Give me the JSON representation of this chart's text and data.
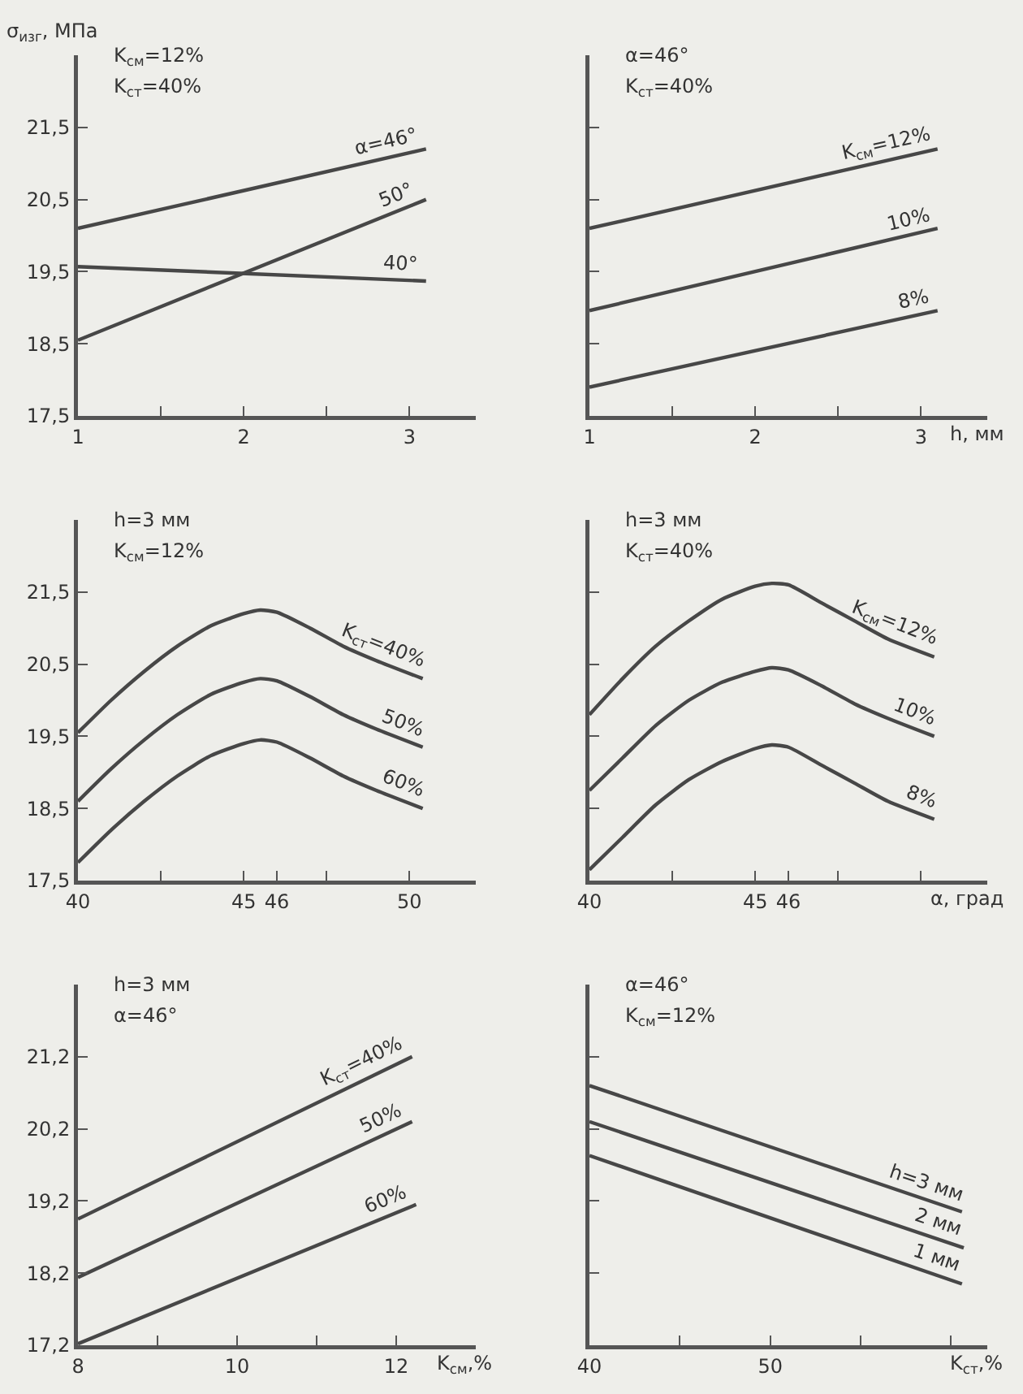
{
  "chart_data": [
    {
      "type": "line",
      "ylabel": "σ$_{изг}$, МПа",
      "annotations": [
        "K$_{см}$=12%",
        "K$_{ст}$=40%"
      ],
      "marker": "none",
      "line_style": "solid",
      "xlim": [
        1,
        3.4
      ],
      "xticks": [
        1,
        {
          "value": 1.5,
          "label": null
        },
        2,
        {
          "value": 2.5,
          "label": null
        },
        3
      ],
      "ylim": [
        17.5,
        22.5
      ],
      "yticks": [
        {
          "value": 17.5,
          "label": "17,5"
        },
        {
          "value": 18.5,
          "label": "18,5"
        },
        {
          "value": 19.5,
          "label": "19,5"
        },
        {
          "value": 20.5,
          "label": "20,5"
        },
        {
          "value": 21.5,
          "label": "21,5"
        }
      ],
      "series": [
        {
          "name": "α=46°",
          "color": "#474747",
          "x": [
            1,
            3.1
          ],
          "values": [
            20.1,
            21.2
          ]
        },
        {
          "name": "50°",
          "color": "#474747",
          "x": [
            1,
            3.1
          ],
          "values": [
            18.55,
            20.5
          ]
        },
        {
          "name": "40°",
          "color": "#474747",
          "x": [
            1,
            3.1
          ],
          "values": [
            19.57,
            19.37
          ]
        }
      ]
    },
    {
      "type": "line",
      "xlabel": "h, мм",
      "annotations": [
        "α=46°",
        "K$_{ст}$=40%"
      ],
      "marker": "none",
      "line_style": "solid",
      "tick_labels": "x",
      "xlim": [
        1,
        3.4
      ],
      "xticks": [
        1,
        {
          "value": 1.5,
          "label": null
        },
        2,
        {
          "value": 2.5,
          "label": null
        },
        3
      ],
      "ylim": [
        17.5,
        22.5
      ],
      "yticks": [
        17.5,
        18.5,
        19.5,
        20.5,
        21.5
      ],
      "series": [
        {
          "name": "K$_{см}$=12%",
          "color": "#474747",
          "x": [
            1,
            3.1
          ],
          "values": [
            20.1,
            21.2
          ]
        },
        {
          "name": "10%",
          "color": "#474747",
          "x": [
            1,
            3.1
          ],
          "values": [
            18.96,
            20.1
          ]
        },
        {
          "name": "8%",
          "color": "#474747",
          "x": [
            1,
            3.1
          ],
          "values": [
            17.9,
            18.96
          ]
        }
      ]
    },
    {
      "type": "line",
      "annotations": [
        "h=3 мм",
        "K$_{см}$=12%"
      ],
      "marker": "none",
      "line_style": "solid",
      "xlim": [
        40,
        52
      ],
      "xticks": [
        40,
        {
          "value": 42.5,
          "label": null
        },
        45,
        46,
        {
          "value": 47.5,
          "label": null
        },
        50
      ],
      "ylim": [
        17.5,
        22.5
      ],
      "yticks": [
        {
          "value": 17.5,
          "label": "17,5"
        },
        {
          "value": 18.5,
          "label": "18,5"
        },
        {
          "value": 19.5,
          "label": "19,5"
        },
        {
          "value": 20.5,
          "label": "20,5"
        },
        {
          "value": 21.5,
          "label": "21,5"
        }
      ],
      "series": [
        {
          "name": "K$_{ст}$=40%",
          "color": "#474747",
          "x": [
            40,
            41,
            42,
            43,
            44,
            45,
            45.5,
            46,
            47,
            48,
            49,
            50.4
          ],
          "values": [
            19.55,
            20.0,
            20.4,
            20.75,
            21.03,
            21.2,
            21.25,
            21.22,
            21.0,
            20.75,
            20.55,
            20.3
          ]
        },
        {
          "name": "50%",
          "color": "#474747",
          "x": [
            40,
            41,
            42,
            43,
            44,
            45,
            45.5,
            46,
            47,
            48,
            49,
            50.4
          ],
          "values": [
            18.6,
            19.05,
            19.45,
            19.8,
            20.08,
            20.25,
            20.3,
            20.27,
            20.05,
            19.8,
            19.6,
            19.35
          ]
        },
        {
          "name": "60%",
          "color": "#474747",
          "x": [
            40,
            41,
            42,
            43,
            44,
            45,
            45.5,
            46,
            47,
            48,
            49,
            50.4
          ],
          "values": [
            17.75,
            18.2,
            18.6,
            18.95,
            19.23,
            19.4,
            19.45,
            19.42,
            19.2,
            18.95,
            18.75,
            18.5
          ]
        }
      ]
    },
    {
      "type": "line",
      "xlabel": "α, град",
      "annotations": [
        "h=3 мм",
        "K$_{ст}$=40%"
      ],
      "marker": "none",
      "line_style": "solid",
      "tick_labels": "x",
      "xlim": [
        40,
        52
      ],
      "xticks": [
        40,
        {
          "value": 42.5,
          "label": null
        },
        45,
        46,
        {
          "value": 47.5,
          "label": null
        },
        {
          "value": 50,
          "label": null
        }
      ],
      "ylim": [
        17.5,
        22.5
      ],
      "yticks": [
        17.5,
        18.5,
        19.5,
        20.5,
        21.5
      ],
      "series": [
        {
          "name": "K$_{см}$=12%",
          "color": "#474747",
          "x": [
            40,
            41,
            42,
            43,
            44,
            45,
            45.5,
            46,
            47,
            48,
            49,
            50.4
          ],
          "values": [
            19.8,
            20.3,
            20.75,
            21.1,
            21.4,
            21.58,
            21.62,
            21.6,
            21.35,
            21.1,
            20.85,
            20.6
          ]
        },
        {
          "name": "10%",
          "color": "#474747",
          "x": [
            40,
            41,
            42,
            43,
            44,
            45,
            45.5,
            46,
            47,
            48,
            49,
            50.4
          ],
          "values": [
            18.75,
            19.2,
            19.65,
            20.0,
            20.25,
            20.4,
            20.45,
            20.42,
            20.2,
            19.95,
            19.75,
            19.5
          ]
        },
        {
          "name": "8%",
          "color": "#474747",
          "x": [
            40,
            41,
            42,
            43,
            44,
            45,
            45.5,
            46,
            47,
            48,
            49,
            50.4
          ],
          "values": [
            17.65,
            18.1,
            18.55,
            18.9,
            19.15,
            19.33,
            19.38,
            19.35,
            19.1,
            18.85,
            18.6,
            18.35
          ]
        }
      ]
    },
    {
      "type": "line",
      "xlabel": "K$_{см}$,%",
      "annotations": [
        "h=3 мм",
        "α=46°"
      ],
      "marker": "none",
      "line_style": "solid",
      "xlim": [
        8,
        13
      ],
      "xticks": [
        8,
        {
          "value": 9,
          "label": null
        },
        10,
        {
          "value": 11,
          "label": null
        },
        12
      ],
      "ylim": [
        17.2,
        22.2
      ],
      "yticks": [
        {
          "value": 17.2,
          "label": "17,2"
        },
        {
          "value": 18.2,
          "label": "18,2"
        },
        {
          "value": 19.2,
          "label": "19,2"
        },
        {
          "value": 20.2,
          "label": "20,2"
        },
        {
          "value": 21.2,
          "label": "21,2"
        }
      ],
      "series": [
        {
          "name": "K$_{ст}$=40%",
          "color": "#474747",
          "x": [
            8,
            12.2
          ],
          "values": [
            18.95,
            21.2
          ]
        },
        {
          "name": "50%",
          "color": "#474747",
          "x": [
            8,
            12.2
          ],
          "values": [
            18.14,
            20.3
          ]
        },
        {
          "name": "60%",
          "color": "#474747",
          "x": [
            8,
            12.25
          ],
          "values": [
            17.22,
            19.15
          ]
        }
      ]
    },
    {
      "type": "line",
      "xlabel": "K$_{ст}$,%",
      "annotations": [
        "α=46°",
        "K$_{см}$=12%"
      ],
      "marker": "none",
      "line_style": "solid",
      "tick_labels": "x",
      "xlim": [
        40,
        62
      ],
      "xticks": [
        40,
        {
          "value": 45,
          "label": null
        },
        50,
        {
          "value": 55,
          "label": null
        },
        {
          "value": 60,
          "label": null
        }
      ],
      "ylim": [
        17.2,
        22.2
      ],
      "yticks": [
        17.2,
        18.2,
        19.2,
        20.2,
        21.2
      ],
      "series": [
        {
          "name": "h=3 мм",
          "color": "#474747",
          "x": [
            40,
            60.6
          ],
          "values": [
            20.8,
            19.05
          ]
        },
        {
          "name": "2 мм",
          "color": "#474747",
          "x": [
            40,
            60.7
          ],
          "values": [
            20.3,
            18.55
          ]
        },
        {
          "name": "1 мм",
          "color": "#474747",
          "x": [
            40,
            60.6
          ],
          "values": [
            19.83,
            18.05
          ]
        }
      ]
    }
  ]
}
